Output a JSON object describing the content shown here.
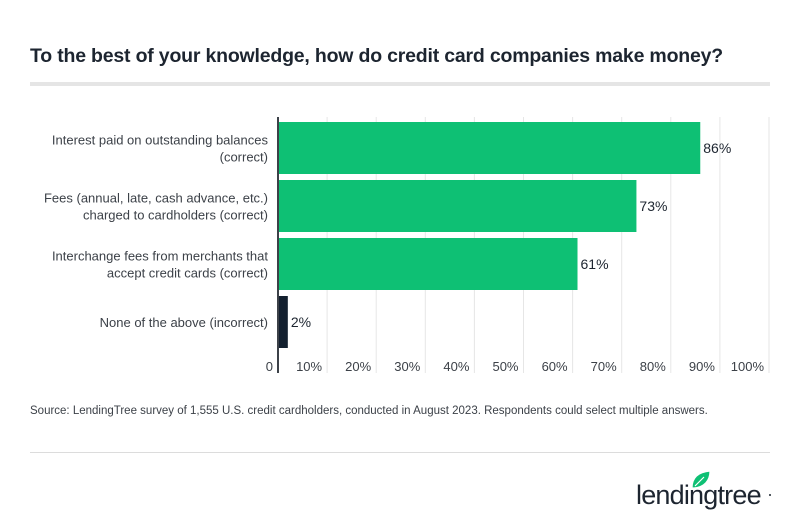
{
  "title": "To the best of your knowledge, how do credit card companies make money?",
  "source": "Source: LendingTree survey of 1,555 U.S. credit cardholders, conducted in August 2023. Respondents could select multiple answers.",
  "logo": {
    "text": "lendingtree",
    "leaf_color": "#0ec074",
    "text_color": "#1d2530"
  },
  "chart_data": {
    "type": "bar",
    "orientation": "horizontal",
    "categories": [
      [
        "Interest paid on outstanding balances",
        "(correct)"
      ],
      [
        "Fees (annual, late, cash advance, etc.)",
        "charged to cardholders (correct)"
      ],
      [
        "Interchange fees from merchants that",
        "accept credit cards (correct)"
      ],
      [
        "None of the above (incorrect)"
      ]
    ],
    "values": [
      86,
      73,
      61,
      2
    ],
    "data_labels": [
      "86%",
      "73%",
      "61%",
      "2%"
    ],
    "colors": [
      "#0ec074",
      "#0ec074",
      "#0ec074",
      "#13202f"
    ],
    "xlim": [
      0,
      100
    ],
    "x_ticks": [
      0,
      10,
      20,
      30,
      40,
      50,
      60,
      70,
      80,
      90,
      100
    ],
    "x_tick_labels": [
      "0",
      "10%",
      "20%",
      "30%",
      "40%",
      "50%",
      "60%",
      "70%",
      "80%",
      "90%",
      "100%"
    ],
    "grid": true,
    "title": "To the best of your knowledge, how do credit card companies make money?",
    "xlabel": "",
    "ylabel": ""
  }
}
